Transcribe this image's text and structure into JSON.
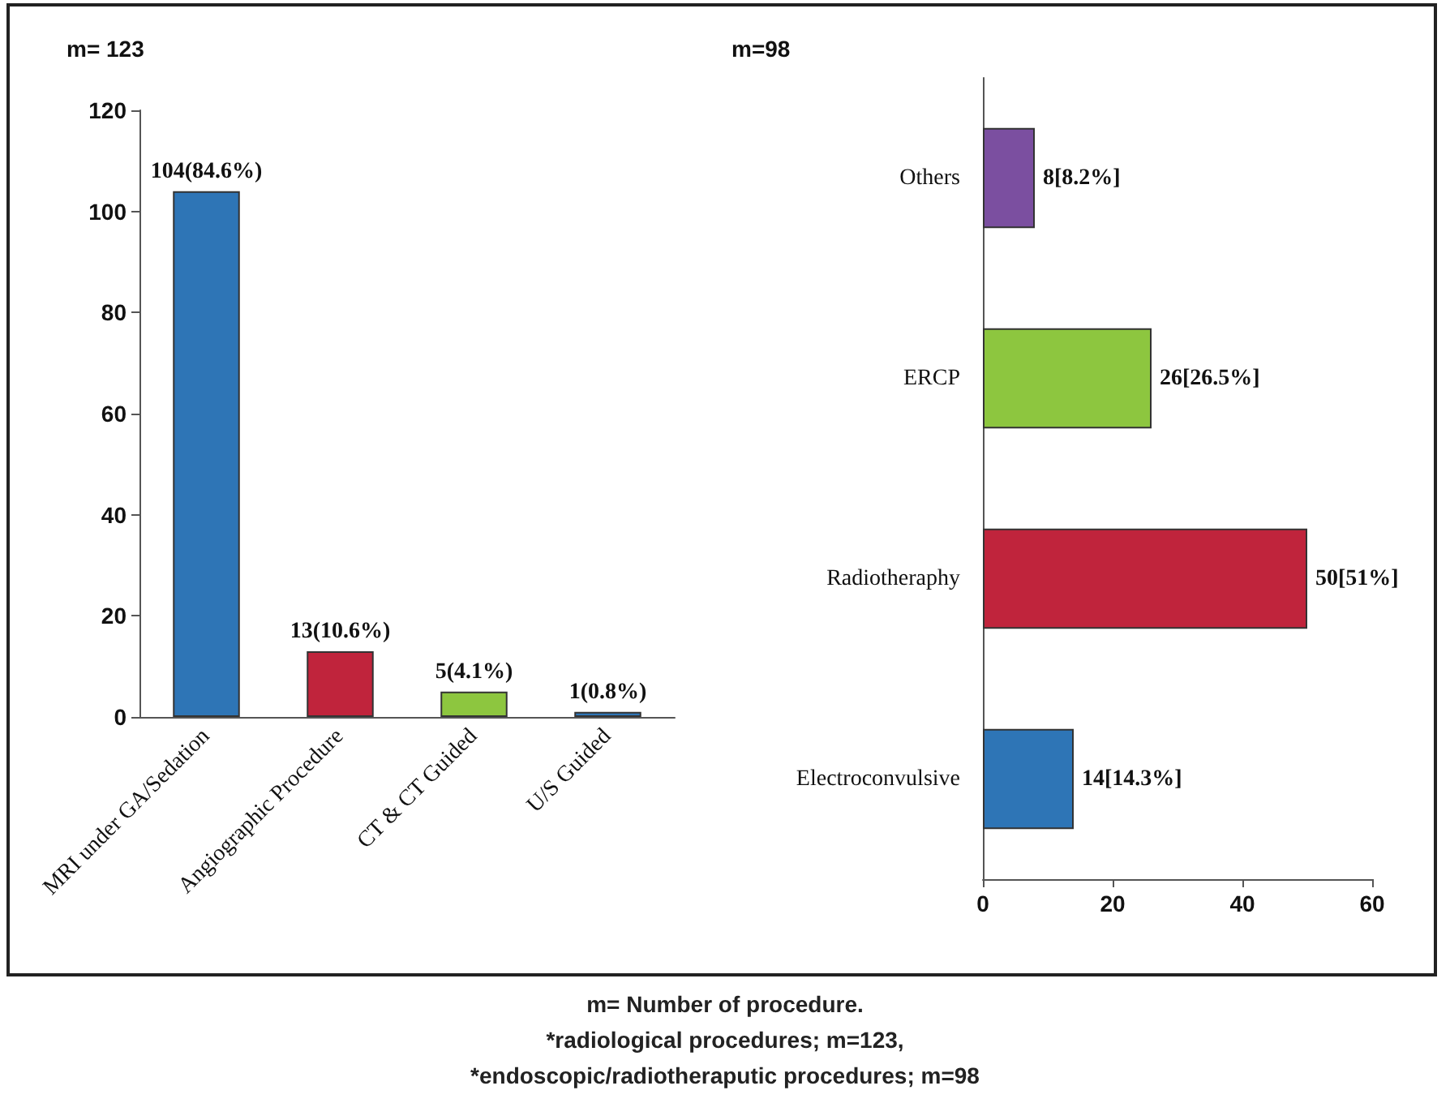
{
  "chart_data": [
    {
      "type": "bar",
      "title": "m= 123",
      "categories": [
        "MRI under GA/Sedation",
        "Angiographic Procedure",
        "CT & CT Guided",
        "U/S Guided"
      ],
      "values": [
        104,
        13,
        5,
        1
      ],
      "colors": [
        "#2e75b6",
        "#c0243c",
        "#8dc63f",
        "#2e75b6"
      ],
      "value_labels": [
        "104(84.6%)",
        "13(10.6%)",
        "5(4.1%)",
        "1(0.8%)"
      ],
      "ylim": [
        0,
        120
      ],
      "yticks": [
        0,
        20,
        40,
        60,
        80,
        100,
        120
      ],
      "grid": false,
      "annotations": [
        "m= Number of procedure.",
        "*radiological procedures; m=123,",
        "*endoscopic/radiotheraputic procedures; m=98"
      ]
    },
    {
      "type": "bar",
      "orientation": "horizontal",
      "title": "m=98",
      "categories": [
        "Others",
        "ERCP",
        "Radiotheraphy",
        "Electroconvulsive"
      ],
      "values": [
        8,
        26,
        50,
        14
      ],
      "colors": [
        "#7b4fa0",
        "#8dc63f",
        "#c0243c",
        "#2e75b6"
      ],
      "value_labels": [
        "8[8.2%]",
        "26[26.5%]",
        "50[51%]",
        "14[14.3%]"
      ],
      "xlim": [
        0,
        60
      ],
      "xticks": [
        0,
        20,
        40,
        60
      ],
      "grid": false
    }
  ]
}
